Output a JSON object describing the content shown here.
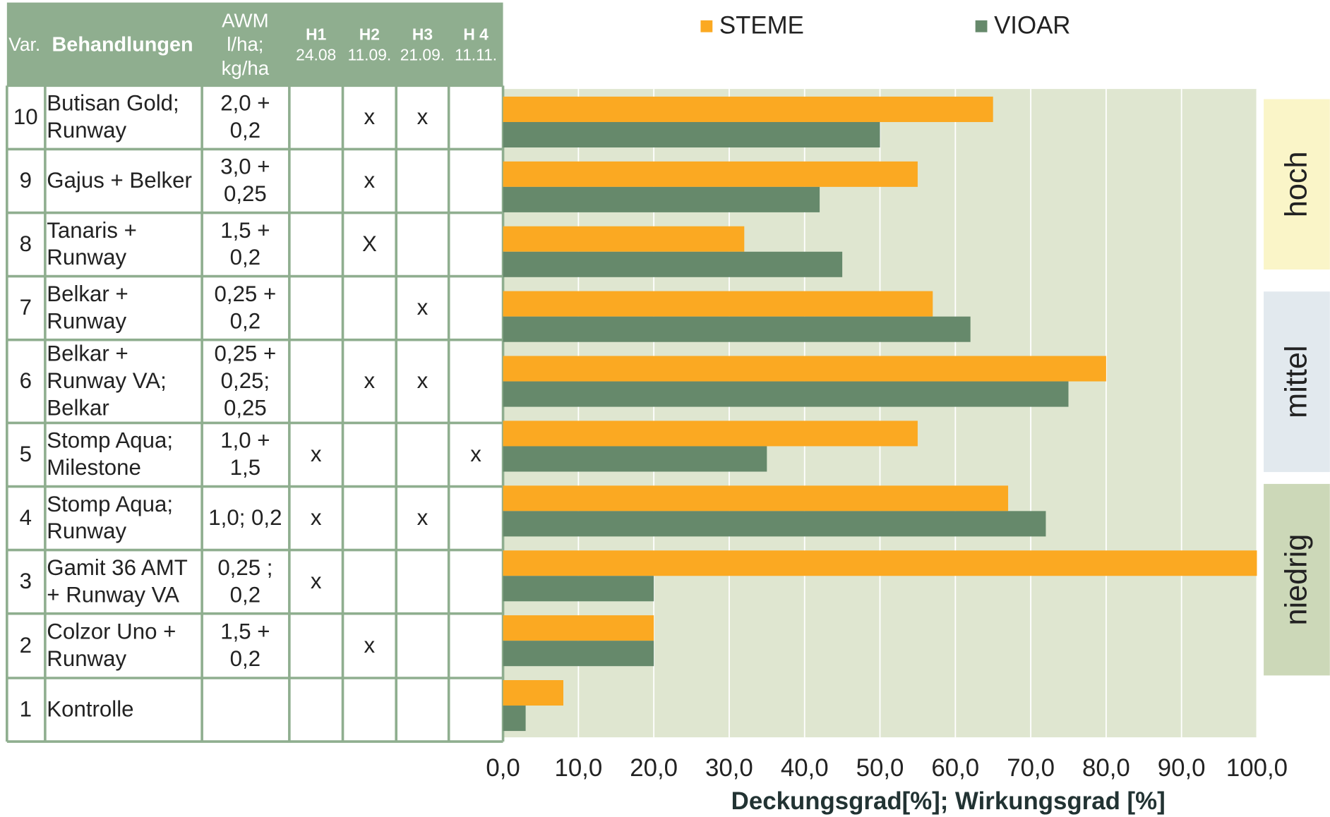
{
  "table": {
    "header": {
      "var": "Var.",
      "treatment": "Behandlungen",
      "awm": [
        "AWM",
        "l/ha;",
        "kg/ha"
      ],
      "h": [
        {
          "name": "H1",
          "date": "24.08"
        },
        {
          "name": "H2",
          "date": "11.09."
        },
        {
          "name": "H3",
          "date": "21.09."
        },
        {
          "name": "H 4",
          "date": "11.11."
        }
      ]
    },
    "rows": [
      {
        "var": "10",
        "treatment": [
          "Butisan Gold;",
          "Runway"
        ],
        "awm": [
          "2,0 +",
          "0,2"
        ],
        "marks": [
          null,
          "x",
          "x",
          null
        ]
      },
      {
        "var": "9",
        "treatment": [
          "Gajus + Belker"
        ],
        "awm": [
          "3,0 +",
          "0,25"
        ],
        "marks": [
          null,
          "x",
          null,
          null
        ]
      },
      {
        "var": "8",
        "treatment": [
          "Tanaris +",
          "Runway"
        ],
        "awm": [
          "1,5 +",
          "0,2"
        ],
        "marks": [
          null,
          "X",
          null,
          null
        ]
      },
      {
        "var": "7",
        "treatment": [
          "Belkar +",
          "Runway"
        ],
        "awm": [
          "0,25 +",
          "0,2"
        ],
        "marks": [
          null,
          null,
          "x",
          null
        ]
      },
      {
        "var": "6",
        "treatment": [
          "Belkar +",
          "Runway VA;",
          "Belkar"
        ],
        "awm": [
          "0,25 +",
          "0,25;",
          "0,25"
        ],
        "marks": [
          null,
          "x",
          "x",
          null
        ]
      },
      {
        "var": "5",
        "treatment": [
          "Stomp Aqua;",
          "Milestone"
        ],
        "awm": [
          "1,0 +",
          "1,5"
        ],
        "marks": [
          "x",
          null,
          null,
          "x"
        ]
      },
      {
        "var": "4",
        "treatment": [
          "Stomp Aqua;",
          "Runway"
        ],
        "awm": [
          "1,0; 0,2"
        ],
        "marks": [
          "x",
          null,
          "x",
          null
        ]
      },
      {
        "var": "3",
        "treatment": [
          "Gamit 36 AMT",
          "+ Runway VA"
        ],
        "awm": [
          "0,25 ;",
          "0,2"
        ],
        "marks": [
          "x",
          null,
          null,
          null
        ]
      },
      {
        "var": "2",
        "treatment": [
          "Colzor Uno +",
          "Runway"
        ],
        "awm": [
          "1,5 +",
          "0,2"
        ],
        "marks": [
          null,
          "x",
          null,
          null
        ]
      },
      {
        "var": "1",
        "treatment": [
          "Kontrolle"
        ],
        "awm": [],
        "marks": [
          null,
          null,
          null,
          null
        ]
      }
    ]
  },
  "chart_data": {
    "type": "barh",
    "xlabel": "Deckungsgrad[%]; Wirkungsgrad [%]",
    "series": [
      {
        "name": "STEME",
        "color": "#fba922",
        "values": [
          65,
          55,
          32,
          57,
          80,
          55,
          67,
          100,
          20,
          8
        ]
      },
      {
        "name": "VIOAR",
        "color": "#66896b",
        "values": [
          50,
          42,
          45,
          62,
          75,
          35,
          72,
          20,
          20,
          3
        ]
      }
    ],
    "xlim": [
      0,
      100
    ],
    "xticks": [
      {
        "value": 0,
        "label": "0,0"
      },
      {
        "value": 10,
        "label": "10,0"
      },
      {
        "value": 20,
        "label": "20,0"
      },
      {
        "value": 30,
        "label": "30,0"
      },
      {
        "value": 40,
        "label": "40,0"
      },
      {
        "value": 50,
        "label": "50,0"
      },
      {
        "value": 60,
        "label": "60,0"
      },
      {
        "value": 70,
        "label": "70,0"
      },
      {
        "value": 80,
        "label": "80,0"
      },
      {
        "value": 90,
        "label": "90,0"
      },
      {
        "value": 100,
        "label": "100,0"
      }
    ],
    "grid": true,
    "legend": "top",
    "bands": [
      {
        "label": "hoch",
        "color": "#faf5c8"
      },
      {
        "label": "mittel",
        "color": "#e2e9ee"
      },
      {
        "label": "niedrig",
        "color": "#ccd8b8"
      }
    ]
  }
}
